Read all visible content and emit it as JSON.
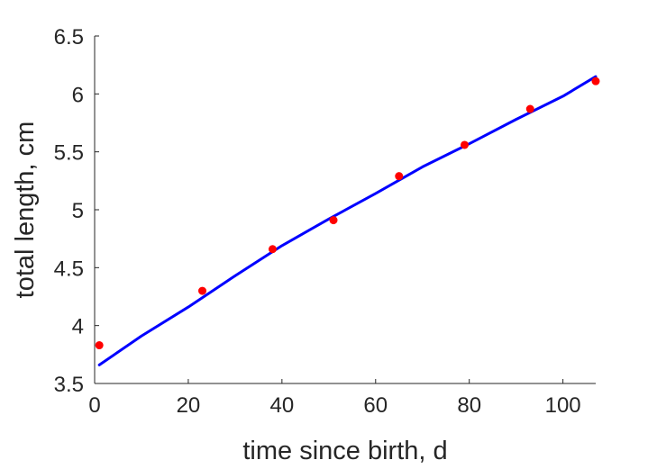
{
  "chart_data": {
    "type": "scatter",
    "title": "",
    "xlabel": "time since birth, d",
    "ylabel": "total length, cm",
    "xlim": [
      0,
      107
    ],
    "ylim": [
      3.5,
      6.5
    ],
    "xticks": [
      "0",
      "20",
      "40",
      "60",
      "80",
      "100"
    ],
    "yticks": [
      "3.5",
      "4",
      "4.5",
      "5",
      "5.5",
      "6",
      "6.5"
    ],
    "grid": false,
    "legend": "none",
    "series": [
      {
        "kind": "points",
        "color": "#ff0000",
        "x": [
          1,
          23,
          38,
          51,
          65,
          79,
          93,
          107
        ],
        "y": [
          3.83,
          4.3,
          4.66,
          4.91,
          5.29,
          5.56,
          5.87,
          6.11
        ]
      },
      {
        "kind": "line",
        "color": "#0000ff",
        "x": [
          1,
          10,
          20,
          30,
          40,
          50,
          60,
          70,
          80,
          90,
          100,
          107
        ],
        "y": [
          3.66,
          3.91,
          4.16,
          4.43,
          4.69,
          4.92,
          5.14,
          5.37,
          5.57,
          5.78,
          5.98,
          6.15
        ]
      }
    ]
  }
}
